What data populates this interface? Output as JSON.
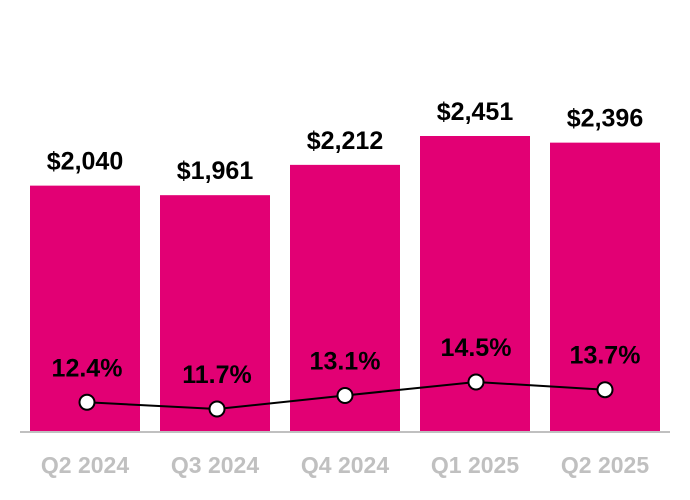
{
  "chart_data": {
    "type": "bar",
    "title": "",
    "xlabel": "",
    "ylabel": "",
    "categories": [
      "Q2 2024",
      "Q3 2024",
      "Q4 2024",
      "Q1 2025",
      "Q2 2025"
    ],
    "series": [
      {
        "name": "Value",
        "type": "bar",
        "values": [
          2040,
          1961,
          2212,
          2451,
          2396
        ],
        "labels": [
          "$2,040",
          "$1,961",
          "$2,212",
          "$2,451",
          "$2,396"
        ],
        "color": "#e20074"
      },
      {
        "name": "Percentage",
        "type": "line",
        "values": [
          12.4,
          11.7,
          13.1,
          14.5,
          13.7
        ],
        "labels": [
          "12.4%",
          "11.7%",
          "13.1%",
          "14.5%",
          "13.7%"
        ],
        "color": "#000000"
      }
    ],
    "ylim": [
      0,
      2451
    ],
    "grid": false,
    "axis_color": "#c0c0c0",
    "tick_label_color": "#c0c0c0"
  }
}
